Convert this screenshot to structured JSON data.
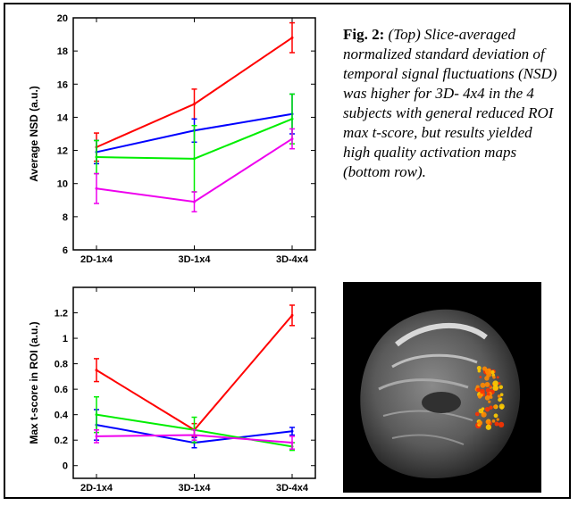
{
  "caption": {
    "label": "Fig. 2:",
    "text": "(Top) Slice-averaged normalized standard deviation of temporal signal fluctuations (NSD) was higher for 3D- 4x4 in the 4 subjects  with general reduced ROI max  t-score, but results yielded high quality  activation maps (bottom row)."
  },
  "chart_data": [
    {
      "type": "line",
      "title": "",
      "xlabel": "",
      "ylabel": "Average NSD (a.u.)",
      "categories": [
        "2D-1x4",
        "3D-1x4",
        "3D-4x4"
      ],
      "ylim": [
        6,
        20
      ],
      "yticks": [
        6,
        8,
        10,
        12,
        14,
        16,
        18,
        20
      ],
      "series": [
        {
          "color": "#ff0000",
          "values": [
            12.2,
            14.8,
            18.8
          ],
          "err": [
            0.85,
            0.9,
            0.9
          ]
        },
        {
          "color": "#0000ff",
          "values": [
            11.9,
            13.2,
            14.2
          ],
          "err": [
            0.7,
            0.7,
            1.2
          ]
        },
        {
          "color": "#00ee00",
          "values": [
            11.6,
            11.5,
            13.9
          ],
          "err": [
            1.0,
            2.0,
            1.5
          ]
        },
        {
          "color": "#ee00ee",
          "values": [
            9.7,
            8.9,
            12.7
          ],
          "err": [
            0.9,
            0.6,
            0.6
          ]
        }
      ]
    },
    {
      "type": "line",
      "title": "",
      "xlabel": "",
      "ylabel": "Max t-score in ROI (a.u.)",
      "categories": [
        "2D-1x4",
        "3D-1x4",
        "3D-4x4"
      ],
      "ylim": [
        -0.1,
        1.4
      ],
      "yticks": [
        0,
        0.2,
        0.4,
        0.6,
        0.8,
        1,
        1.2
      ],
      "series": [
        {
          "color": "#ff0000",
          "values": [
            0.75,
            0.28,
            1.18
          ],
          "err": [
            0.09,
            0.05,
            0.08
          ]
        },
        {
          "color": "#0000ff",
          "values": [
            0.32,
            0.18,
            0.27
          ],
          "err": [
            0.12,
            0.04,
            0.03
          ]
        },
        {
          "color": "#00ee00",
          "values": [
            0.4,
            0.28,
            0.15
          ],
          "err": [
            0.14,
            0.1,
            0.03
          ]
        },
        {
          "color": "#ee00ee",
          "values": [
            0.23,
            0.24,
            0.18
          ],
          "err": [
            0.05,
            0.04,
            0.05
          ]
        }
      ]
    }
  ],
  "image": {
    "overlay_colors": [
      "#ff8800",
      "#ff3300",
      "#ffcc00"
    ]
  }
}
